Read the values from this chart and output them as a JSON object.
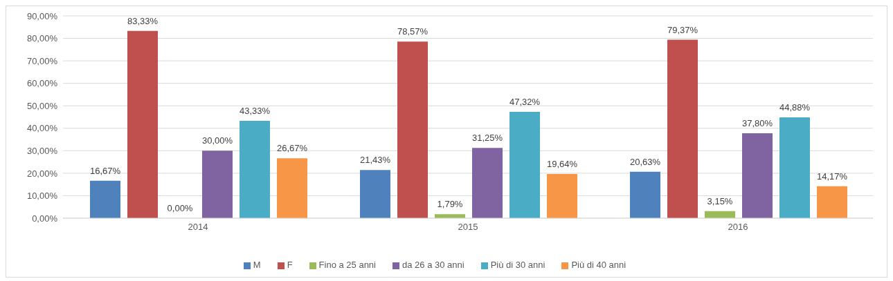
{
  "chart_data": {
    "type": "bar",
    "categories": [
      "2014",
      "2015",
      "2016"
    ],
    "series": [
      {
        "name": "M",
        "color": "#4f81bd",
        "values": [
          16.67,
          21.43,
          20.63
        ],
        "value_labels": [
          "16,67%",
          "21,43%",
          "20,63%"
        ]
      },
      {
        "name": "F",
        "color": "#c0504d",
        "values": [
          83.33,
          78.57,
          79.37
        ],
        "value_labels": [
          "83,33%",
          "78,57%",
          "79,37%"
        ]
      },
      {
        "name": "Fino a 25 anni",
        "color": "#9bbb59",
        "values": [
          0,
          1.79,
          3.15
        ],
        "value_labels": [
          "0,00%",
          "1,79%",
          "3,15%"
        ]
      },
      {
        "name": "da 26 a 30 anni",
        "color": "#8064a2",
        "values": [
          30,
          31.25,
          37.8
        ],
        "value_labels": [
          "30,00%",
          "31,25%",
          "37,80%"
        ]
      },
      {
        "name": "Più di 30 anni",
        "color": "#4bacc6",
        "values": [
          43.33,
          47.32,
          44.88
        ],
        "value_labels": [
          "43,33%",
          "47,32%",
          "44,88%"
        ]
      },
      {
        "name": "Più di 40 anni",
        "color": "#f79646",
        "values": [
          26.67,
          19.64,
          14.17
        ],
        "value_labels": [
          "26,67%",
          "19,64%",
          "14,17%"
        ]
      }
    ],
    "ylim": [
      0,
      90
    ],
    "yticks": [
      {
        "value": 0,
        "label": "0,00%"
      },
      {
        "value": 10,
        "label": "10,00%"
      },
      {
        "value": 20,
        "label": "20,00%"
      },
      {
        "value": 30,
        "label": "30,00%"
      },
      {
        "value": 40,
        "label": "40,00%"
      },
      {
        "value": 50,
        "label": "50,00%"
      },
      {
        "value": 60,
        "label": "60,00%"
      },
      {
        "value": 70,
        "label": "70,00%"
      },
      {
        "value": 80,
        "label": "80,00%"
      },
      {
        "value": 90,
        "label": "90,00%"
      }
    ],
    "grid": "y",
    "legend": "bottom"
  }
}
